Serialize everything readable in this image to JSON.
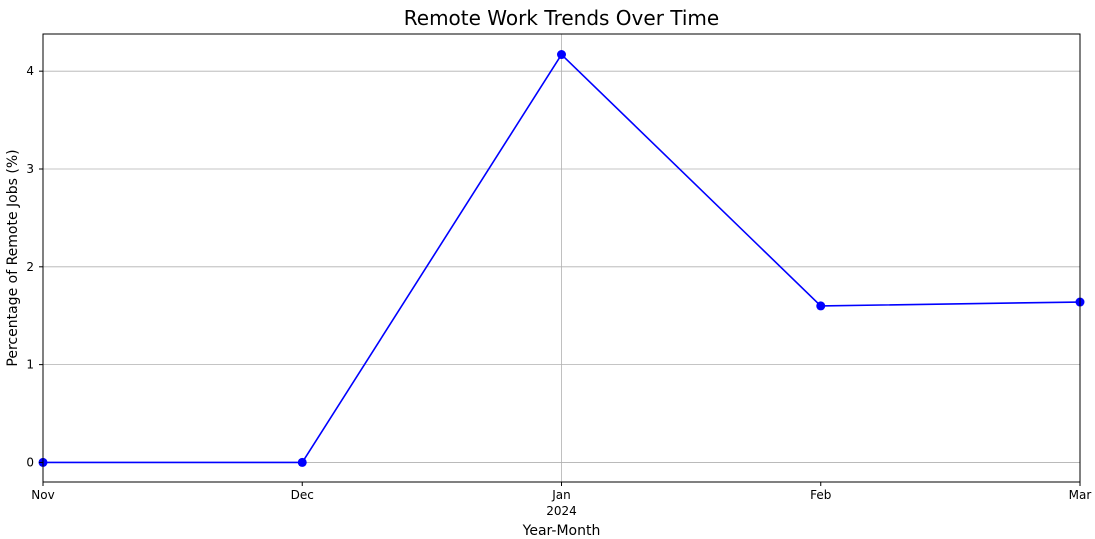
{
  "chart_data": {
    "type": "line",
    "title": "Remote Work Trends Over Time",
    "xlabel": "Year-Month",
    "ylabel": "Percentage of Remote Jobs (%)",
    "x": [
      "2023-11",
      "2023-12",
      "2024-01",
      "2024-02",
      "2024-03"
    ],
    "x_tick_labels": [
      "Nov",
      "Dec",
      "Jan",
      "Feb",
      "Mar"
    ],
    "x_tick_year_label": "2024",
    "series": [
      {
        "values": [
          0.0,
          0.0,
          4.17,
          1.6,
          1.64
        ],
        "color": "#0000ff",
        "marker": "circle"
      }
    ],
    "yticks": [
      0,
      1,
      2,
      3,
      4
    ],
    "ylim": [
      -0.2,
      4.38
    ],
    "grid": true
  }
}
